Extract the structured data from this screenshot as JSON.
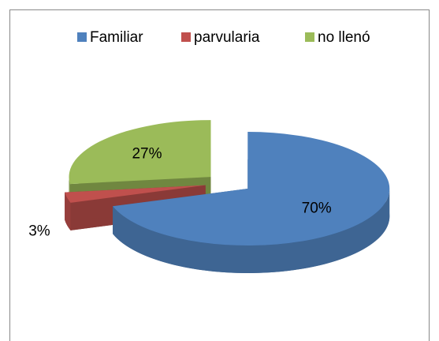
{
  "chart_data": {
    "type": "pie",
    "categories": [
      "Familiar",
      "parvularia",
      "no llenó"
    ],
    "values": [
      70,
      3,
      27
    ],
    "value_labels": [
      "70%",
      "3%",
      "27%"
    ],
    "colors": [
      "#4f81bd",
      "#c0504d",
      "#9bbb59"
    ],
    "legend": "top",
    "three_d": true,
    "exploded": true
  }
}
